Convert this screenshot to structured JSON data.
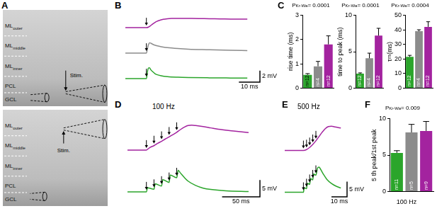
{
  "panel_a": {
    "label": "A",
    "images": [
      {
        "layers": [
          {
            "text": "ML",
            "sub": "outer"
          },
          {
            "text": "ML",
            "sub": "middle"
          },
          {
            "text": "ML",
            "sub": "inner"
          },
          {
            "text": "PCL"
          },
          {
            "text": "GCL"
          }
        ],
        "stim": "Stim."
      },
      {
        "layers": [
          {
            "text": "ML",
            "sub": "outer"
          },
          {
            "text": "ML",
            "sub": "middle"
          },
          {
            "text": "ML",
            "sub": "inner"
          },
          {
            "text": "PCL"
          },
          {
            "text": "GCL"
          }
        ],
        "stim": "Stim."
      }
    ]
  },
  "chart_data": [
    {
      "panel": "B",
      "type": "line",
      "xlim": [
        0,
        64
      ],
      "ylim": [
        -0.6,
        2.1
      ],
      "tick_labels": false,
      "scale_bar": {
        "x": 10,
        "y": 2,
        "x_label": "10 ms",
        "y_label": "2 mV"
      },
      "series": [
        {
          "color": "#a3239f",
          "x": [
            0,
            10,
            11,
            12,
            13,
            14,
            15,
            16,
            18,
            20,
            22,
            25,
            30,
            35,
            40,
            45,
            50,
            58
          ],
          "values": [
            0,
            0,
            0.1,
            0.35,
            0.65,
            0.9,
            1.1,
            1.25,
            1.45,
            1.55,
            1.6,
            1.62,
            1.6,
            1.58,
            1.55,
            1.53,
            1.5,
            1.48
          ],
          "stimuli": [
            10
          ]
        },
        {
          "color": "#8c8c8c",
          "x": [
            0,
            10,
            10.5,
            11,
            11.5,
            12,
            13,
            14,
            16,
            18,
            20,
            25,
            30,
            40,
            50,
            58
          ],
          "values": [
            0,
            0,
            0.8,
            1.5,
            1.8,
            1.75,
            1.55,
            1.4,
            1.2,
            1.05,
            0.95,
            0.8,
            0.7,
            0.6,
            0.5,
            0.45
          ],
          "stimuli": [
            10
          ]
        },
        {
          "color": "#2ba52b",
          "x": [
            0,
            10,
            10.5,
            11,
            11.5,
            12,
            13,
            14,
            15,
            17,
            20,
            25,
            30,
            40,
            50,
            58
          ],
          "values": [
            0,
            0,
            1.2,
            1.85,
            1.9,
            1.6,
            1.2,
            0.9,
            0.7,
            0.5,
            0.35,
            0.25,
            0.2,
            0.15,
            0.12,
            0.1
          ],
          "stimuli": [
            10
          ]
        }
      ]
    },
    {
      "panel": "C",
      "type": "bar",
      "title": {
        "text": "P",
        "sub": "Kr-Wa",
        "rest": " = 0.0001"
      },
      "y_label": {
        "text": "rise time (ms)"
      },
      "categories": [
        null,
        null,
        null
      ],
      "values": [
        0.55,
        0.9,
        1.8
      ],
      "errors": [
        0.05,
        0.2,
        0.35
      ],
      "colors": [
        "#2ba52b",
        "#8c8c8c",
        "#a3239f"
      ],
      "annotations": [
        "n=12",
        "n=4",
        "n=12"
      ],
      "ylim": [
        0,
        3
      ],
      "yticks": [
        0,
        1,
        2,
        3
      ],
      "grid": false,
      "tick_labels": "y"
    },
    {
      "type": "bar",
      "title": {
        "text": "P",
        "sub": "Kr-Wa",
        "rest": " = 0.0001"
      },
      "y_label": {
        "text": "time to peak (ms)"
      },
      "categories": [
        null,
        null,
        null
      ],
      "values": [
        2.0,
        4.1,
        7.2
      ],
      "errors": [
        0.1,
        0.7,
        1.0
      ],
      "colors": [
        "#2ba52b",
        "#8c8c8c",
        "#a3239f"
      ],
      "annotations": [
        "n=12",
        "n=4",
        "n=12"
      ],
      "ylim": [
        0,
        10
      ],
      "yticks": [
        0,
        5,
        10
      ],
      "grid": false,
      "tick_labels": "y"
    },
    {
      "type": "bar",
      "title": {
        "text": "P",
        "sub": "Kr-Wa",
        "rest": " = 0.0004"
      },
      "y_label": {
        "text": "τ",
        "sub": "m",
        "rest": " (ms)"
      },
      "categories": [
        null,
        null,
        null
      ],
      "values": [
        21.5,
        39,
        42
      ],
      "errors": [
        1.0,
        1.0,
        3.5
      ],
      "colors": [
        "#2ba52b",
        "#8c8c8c",
        "#a3239f"
      ],
      "annotations": [
        "n=12",
        "n=4",
        "n=12"
      ],
      "ylim": [
        0,
        50
      ],
      "yticks": [
        0,
        10,
        20,
        30,
        40,
        50
      ],
      "grid": false,
      "tick_labels": "y"
    },
    {
      "panel": "D",
      "type": "line",
      "title": {
        "text": "100 Hz"
      },
      "xlim": [
        0,
        175
      ],
      "ylim": [
        -1.5,
        8
      ],
      "tick_labels": false,
      "scale_bar": {
        "x": 50,
        "y": 5,
        "x_label": "50 ms",
        "y_label": "5 mV"
      },
      "series": [
        {
          "color": "#a3239f",
          "x": [
            0,
            25,
            27,
            30,
            35,
            40,
            45,
            50,
            55,
            60,
            65,
            70,
            75,
            80,
            85,
            90,
            100,
            110,
            120,
            140,
            160
          ],
          "values": [
            0,
            0,
            0.3,
            0.8,
            1.3,
            2.0,
            2.6,
            3.3,
            3.9,
            4.6,
            5.3,
            6.1,
            6.8,
            7.3,
            7.4,
            7.3,
            7.0,
            6.6,
            6.2,
            5.7,
            5.2
          ],
          "stimuli": [
            25,
            35,
            45,
            55,
            65
          ]
        },
        {
          "color": "#2ba52b",
          "x": [
            0,
            25,
            26.5,
            35,
            36.5,
            45,
            46.5,
            55,
            56.5,
            65,
            67,
            70,
            75,
            80,
            90,
            100,
            110,
            130,
            160
          ],
          "values": [
            0,
            0,
            1.2,
            0.75,
            2.4,
            1.7,
            3.6,
            2.8,
            5.0,
            4.2,
            6.4,
            5.6,
            4.3,
            3.2,
            1.9,
            1.1,
            0.7,
            0.3,
            0.1
          ],
          "stimuli": [
            25,
            35,
            45,
            55,
            65
          ]
        }
      ]
    },
    {
      "panel": "E",
      "type": "line",
      "title": {
        "text": "500 Hz"
      },
      "xlim": [
        0,
        40
      ],
      "ylim": [
        -1.5,
        9
      ],
      "tick_labels": false,
      "scale_bar": {
        "x": 10,
        "y": 5,
        "x_label": "10 ms",
        "y_label": "5 mV"
      },
      "series": [
        {
          "color": "#a3239f",
          "x": [
            0,
            12,
            14,
            16,
            18,
            20,
            22,
            24,
            26,
            28,
            30,
            32,
            34,
            36
          ],
          "values": [
            0,
            0,
            0.3,
            1.0,
            2.0,
            3.2,
            4.6,
            6.0,
            7.2,
            7.9,
            8.0,
            7.8,
            7.6,
            7.4
          ],
          "stimuli": [
            12,
            14,
            16,
            18,
            20
          ]
        },
        {
          "color": "#2ba52b",
          "x": [
            0,
            12,
            12.5,
            14,
            14.5,
            16,
            16.5,
            18,
            18.5,
            20,
            21,
            22,
            23,
            25,
            27,
            30,
            33,
            36
          ],
          "values": [
            0,
            0,
            1.5,
            1.2,
            3.0,
            2.6,
            4.5,
            4.1,
            6.0,
            5.6,
            7.9,
            8.3,
            7.6,
            5.8,
            4.3,
            2.9,
            2.0,
            1.4
          ],
          "stimuli": [
            12,
            14,
            16,
            18,
            20
          ]
        }
      ]
    },
    {
      "panel": "F",
      "type": "bar",
      "title": {
        "text": "P",
        "sub": "Kr-Wa",
        "rest": " = 0.009"
      },
      "y_label": {
        "text": "5 th peak/1st peak"
      },
      "x_label": {
        "text": "100 Hz"
      },
      "categories": [
        null,
        null,
        null
      ],
      "values": [
        5.3,
        8.1,
        8.3
      ],
      "errors": [
        0.3,
        1.1,
        1.3
      ],
      "colors": [
        "#2ba52b",
        "#8c8c8c",
        "#a3239f"
      ],
      "annotations": [
        "n=11",
        "n=5",
        "n=9"
      ],
      "ylim": [
        0,
        10
      ],
      "yticks": [
        0,
        5,
        10
      ],
      "grid": false,
      "tick_labels": "y"
    }
  ]
}
